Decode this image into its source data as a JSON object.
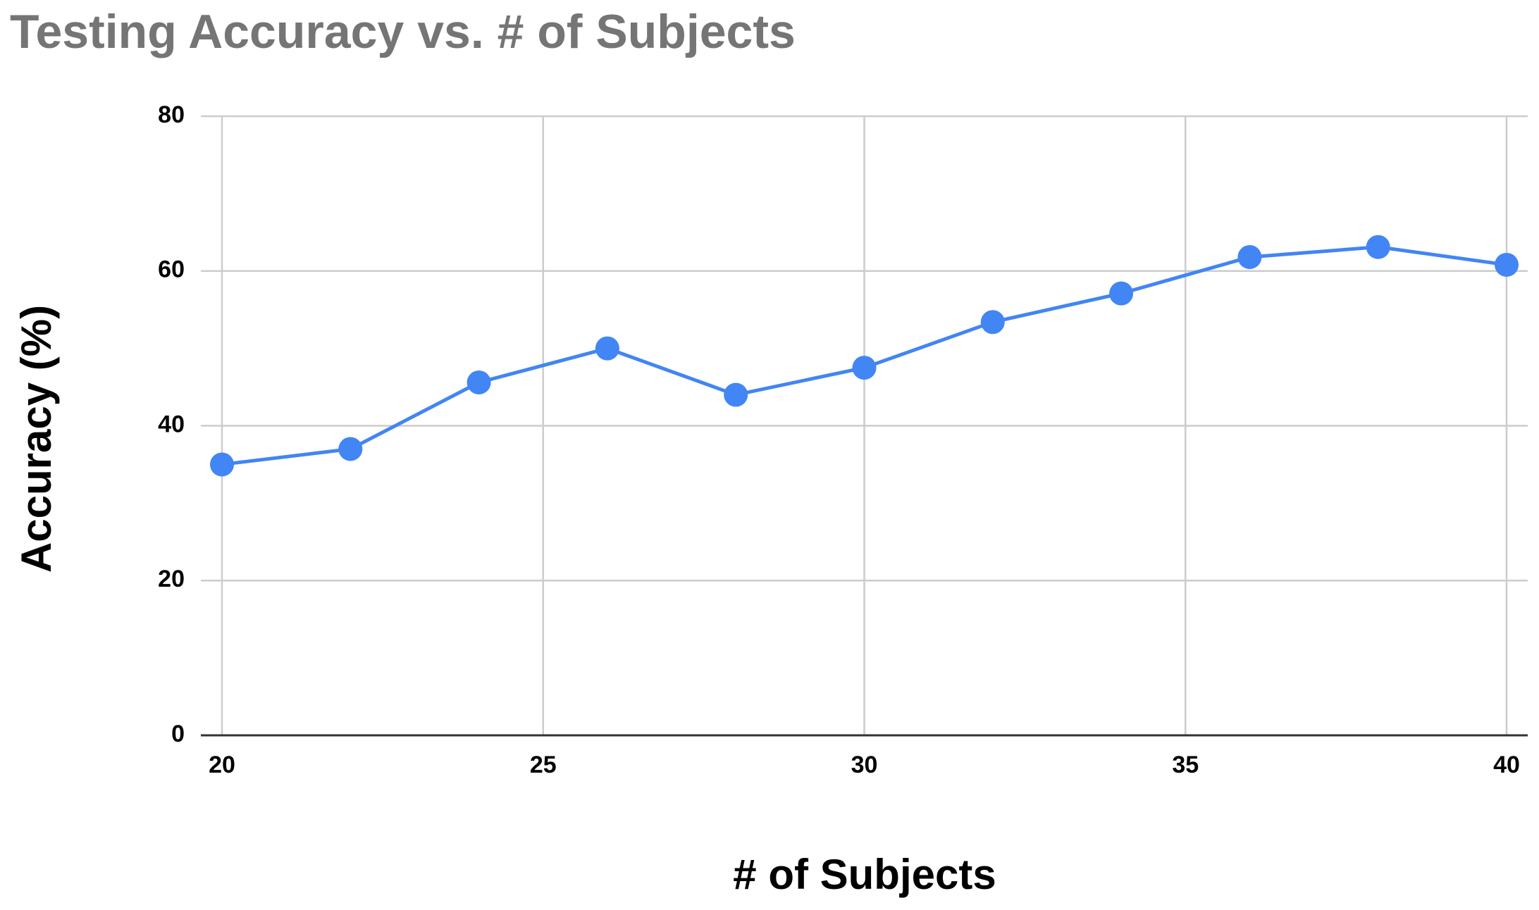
{
  "chart_data": {
    "type": "line",
    "title": "Testing Accuracy vs. # of Subjects",
    "x_label": "# of Subjects",
    "y_label": "Accuracy (%)",
    "x": [
      20,
      22,
      24,
      26,
      28,
      30,
      32,
      34,
      36,
      38,
      40
    ],
    "series": [
      {
        "name": "Accuracy",
        "color": "#4285f4",
        "values": [
          35,
          37,
          45.6,
          50,
          44,
          47.5,
          53.4,
          57.1,
          61.8,
          63.1,
          60.8
        ]
      }
    ],
    "xlim": [
      20,
      40
    ],
    "xticks": [
      20,
      25,
      30,
      35,
      40
    ],
    "ylim": [
      0,
      80
    ],
    "yticks": [
      0,
      20,
      40,
      60,
      80
    ],
    "grid": true
  }
}
